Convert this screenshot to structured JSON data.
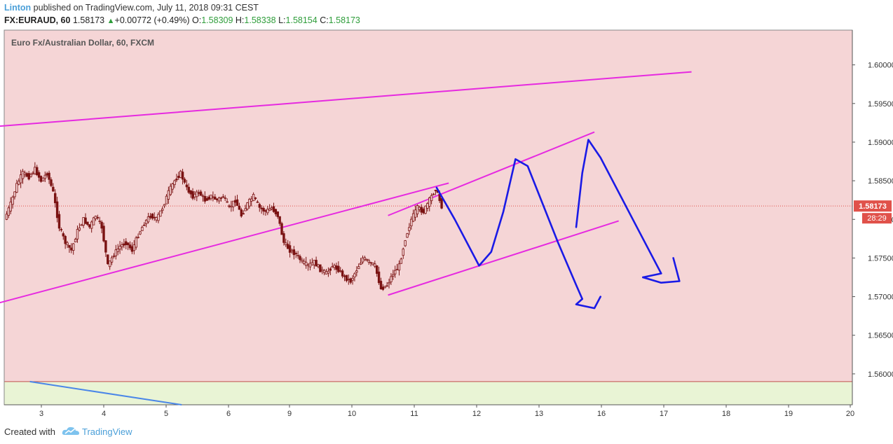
{
  "header": {
    "author": "Linton",
    "published_text": "published on TradingView.com, July 11, 2018 09:31 CEST",
    "symbol": "FX:EURAUD, 60",
    "last": "1.58173",
    "change": "+0.00772 (+0.49%)",
    "o_label": "O:",
    "o_value": "1.58309",
    "h_label": "H:",
    "h_value": "1.58338",
    "l_label": "L:",
    "l_value": "1.58154",
    "c_label": "C:",
    "c_value": "1.58173"
  },
  "footer": {
    "created_with": "Created with",
    "brand": "TradingView"
  },
  "colors": {
    "upper_zone": "#f5d5d6",
    "lower_zone": "#e9f4d5",
    "channel_lines": "#e62ae0",
    "projection": "#1a1ae6",
    "trend_line": "#4a86e8",
    "price_label": "#e0514a",
    "candle": "#7a1212"
  },
  "chart_data": {
    "type": "candlestick",
    "title": "Euro Fx/Australian Dollar, 60, FXCM",
    "x_ticks": [
      "3",
      "4",
      "5",
      "6",
      "9",
      "10",
      "11",
      "12",
      "13",
      "16",
      "17",
      "18",
      "19",
      "20"
    ],
    "y_ticks": [
      "1.60000",
      "1.59500",
      "1.59000",
      "1.58500",
      "1.58000",
      "1.57500",
      "1.57000",
      "1.56500",
      "1.56000"
    ],
    "ylim": [
      1.556,
      1.6045
    ],
    "current_price": "1.58173",
    "countdown": "28:29",
    "zone_boundary_price": 1.559,
    "path_points": [
      [
        0,
        1.58
      ],
      [
        1,
        1.582
      ],
      [
        2,
        1.5845
      ],
      [
        3,
        1.586
      ],
      [
        4,
        1.5855
      ],
      [
        5,
        1.5865
      ],
      [
        6,
        1.585
      ],
      [
        7,
        1.586
      ],
      [
        8,
        1.5835
      ],
      [
        9,
        1.579
      ],
      [
        10,
        1.577
      ],
      [
        11,
        1.576
      ],
      [
        12,
        1.5785
      ],
      [
        13,
        1.58
      ],
      [
        14,
        1.579
      ],
      [
        15,
        1.5805
      ],
      [
        16,
        1.579
      ],
      [
        17,
        1.574
      ],
      [
        18,
        1.5755
      ],
      [
        19,
        1.5765
      ],
      [
        20,
        1.577
      ],
      [
        21,
        1.576
      ],
      [
        22,
        1.578
      ],
      [
        23,
        1.5795
      ],
      [
        24,
        1.5805
      ],
      [
        25,
        1.58
      ],
      [
        26,
        1.5815
      ],
      [
        27,
        1.5835
      ],
      [
        28,
        1.585
      ],
      [
        29,
        1.586
      ],
      [
        30,
        1.584
      ],
      [
        31,
        1.583
      ],
      [
        32,
        1.5835
      ],
      [
        33,
        1.5825
      ],
      [
        34,
        1.583
      ],
      [
        35,
        1.5825
      ],
      [
        36,
        1.583
      ],
      [
        37,
        1.5815
      ],
      [
        38,
        1.5825
      ],
      [
        39,
        1.5805
      ],
      [
        40,
        1.582
      ],
      [
        41,
        1.583
      ],
      [
        42,
        1.5815
      ],
      [
        43,
        1.581
      ],
      [
        44,
        1.5815
      ],
      [
        45,
        1.5805
      ],
      [
        46,
        1.577
      ],
      [
        47,
        1.576
      ],
      [
        48,
        1.5755
      ],
      [
        49,
        1.5745
      ],
      [
        50,
        1.574
      ],
      [
        51,
        1.5745
      ],
      [
        52,
        1.5735
      ],
      [
        53,
        1.573
      ],
      [
        54,
        1.574
      ],
      [
        55,
        1.5735
      ],
      [
        56,
        1.5725
      ],
      [
        57,
        1.572
      ],
      [
        58,
        1.5735
      ],
      [
        59,
        1.575
      ],
      [
        60,
        1.5745
      ],
      [
        61,
        1.574
      ],
      [
        62,
        1.571
      ],
      [
        63,
        1.5715
      ],
      [
        64,
        1.573
      ],
      [
        65,
        1.574
      ],
      [
        66,
        1.5775
      ],
      [
        67,
        1.58
      ],
      [
        68,
        1.5815
      ],
      [
        69,
        1.581
      ],
      [
        70,
        1.5825
      ],
      [
        71,
        1.584
      ],
      [
        72,
        1.5817
      ]
    ],
    "channel_lines": [
      {
        "from": [
          -2,
          1.592
        ],
        "to": [
          113,
          1.5991
        ]
      },
      {
        "from": [
          -2,
          1.569
        ],
        "to": [
          73,
          1.5847
        ]
      },
      {
        "from": [
          63,
          1.5702
        ],
        "to": [
          101,
          1.5798
        ]
      },
      {
        "from": [
          63,
          1.5805
        ],
        "to": [
          97,
          1.5913
        ]
      }
    ],
    "trend_line": {
      "from": [
        4,
        1.559
      ],
      "to": [
        29,
        1.556
      ]
    },
    "projection_path": [
      [
        71,
        1.5841
      ],
      [
        74,
        1.58
      ],
      [
        78,
        1.574
      ],
      [
        80,
        1.5758
      ],
      [
        82,
        1.581
      ],
      [
        84,
        1.5878
      ],
      [
        86,
        1.5869
      ],
      [
        91,
        1.577
      ],
      [
        94,
        1.5715
      ],
      [
        95,
        1.5697
      ],
      [
        94,
        1.569
      ],
      [
        97,
        1.5685
      ],
      [
        98,
        1.57
      ],
      [
        94,
        1.579
      ],
      [
        95,
        1.586
      ],
      [
        96,
        1.5903
      ],
      [
        98,
        1.588
      ],
      [
        104,
        1.579
      ],
      [
        108,
        1.573
      ],
      [
        105,
        1.5725
      ],
      [
        108,
        1.5718
      ],
      [
        111,
        1.572
      ],
      [
        110,
        1.575
      ]
    ]
  }
}
